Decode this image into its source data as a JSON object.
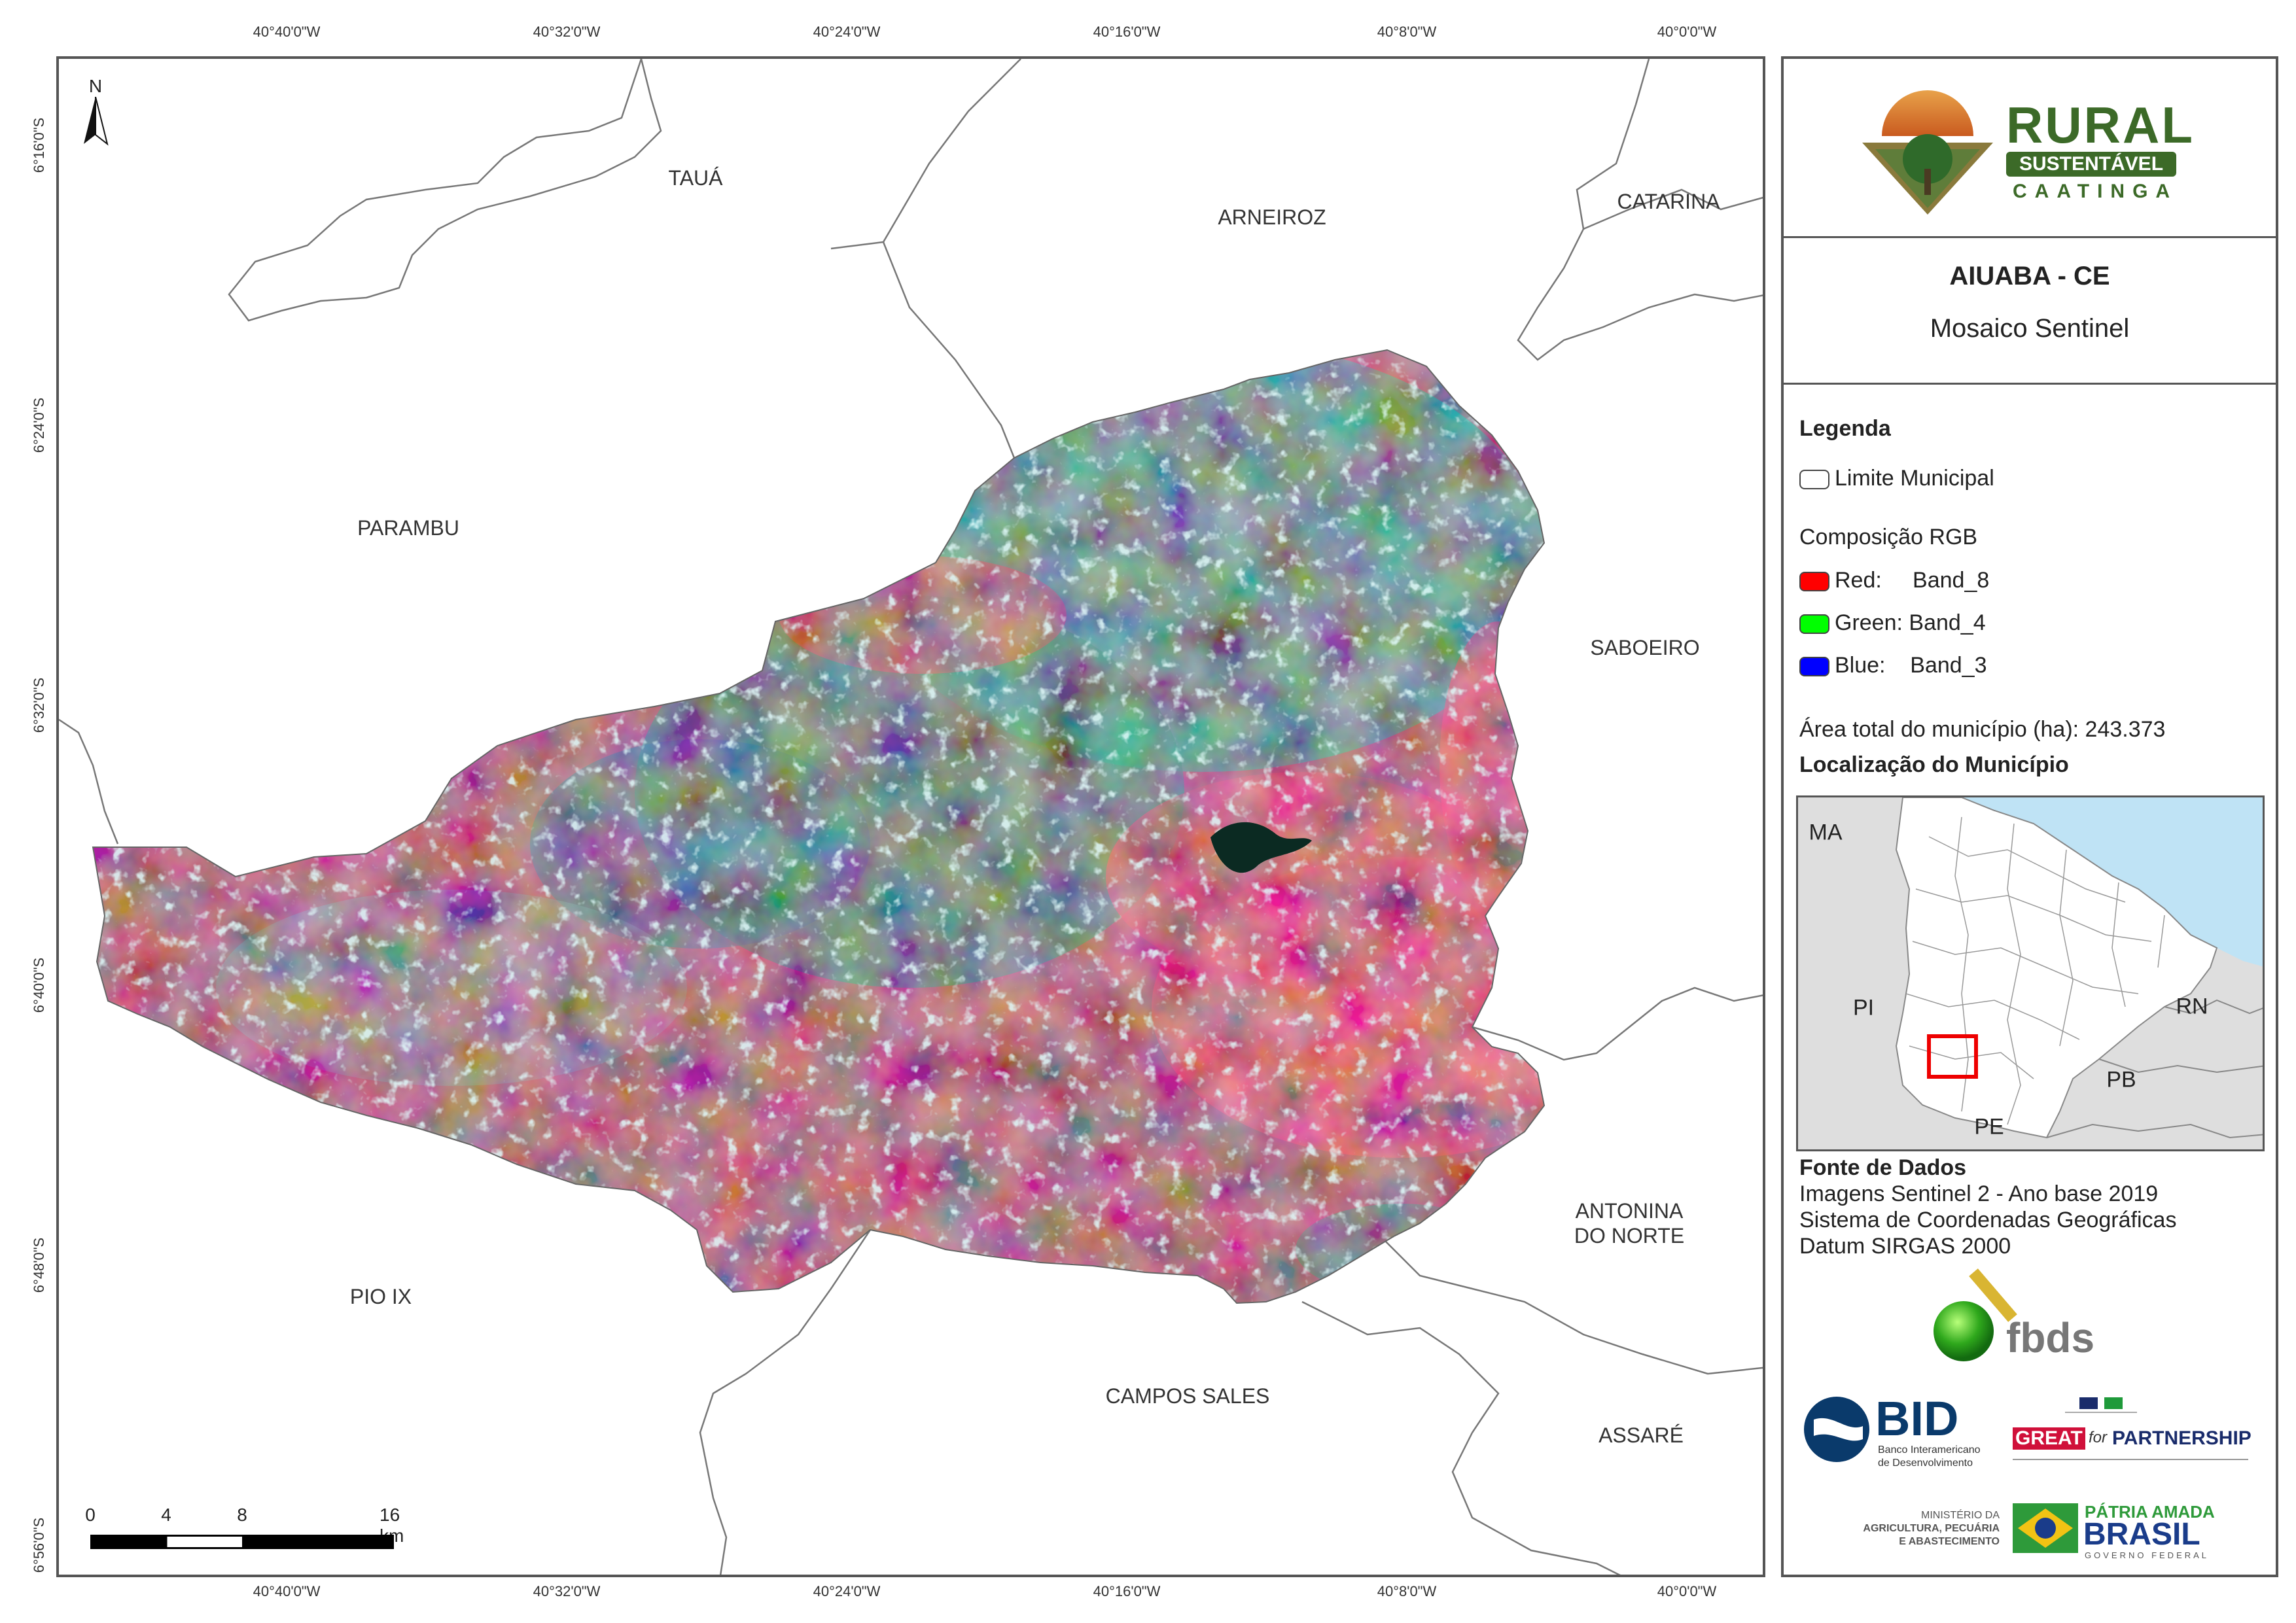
{
  "grid": {
    "top": [
      "40°40'0\"W",
      "40°32'0\"W",
      "40°24'0\"W",
      "40°16'0\"W",
      "40°8'0\"W",
      "40°0'0\"W"
    ],
    "bottom": [
      "40°40'0\"W",
      "40°32'0\"W",
      "40°24'0\"W",
      "40°16'0\"W",
      "40°8'0\"W",
      "40°0'0\"W"
    ],
    "left": [
      "6°16'0\"S",
      "6°24'0\"S",
      "6°32'0\"S",
      "6°40'0\"S",
      "6°48'0\"S",
      "6°56'0\"S"
    ]
  },
  "north_arrow": {
    "label": "N"
  },
  "places": {
    "taua": "TAUÁ",
    "arneiroz": "ARNEIROZ",
    "catarina": "CATARINA",
    "parambu": "PARAMBU",
    "saboeiro": "SABOEIRO",
    "antonina_1": "ANTONINA",
    "antonina_2": "DO NORTE",
    "pio_ix": "PIO IX",
    "campos_sales": "CAMPOS SALES",
    "assare": "ASSARÉ"
  },
  "scale_bar": {
    "ticks": [
      "0",
      "4",
      "8",
      "16 km"
    ]
  },
  "logo_rural": {
    "line1": "RURAL",
    "line2": "SUSTENTÁVEL",
    "line3": "CAATINGA"
  },
  "title": {
    "line1": "AIUABA - CE",
    "line2": "Mosaico Sentinel"
  },
  "legend": {
    "heading": "Legenda",
    "boundary": "Limite Municipal",
    "rgb_heading": "Composição RGB",
    "red": "Red:     Band_8",
    "green": "Green: Band_4",
    "blue": "Blue:    Band_3",
    "colors": {
      "red": "#ff0000",
      "green": "#00ff00",
      "blue": "#0000ff"
    }
  },
  "area_text": "Área total do município (ha): 243.373",
  "location_heading": "Localização do Município",
  "inset": {
    "ma": "MA",
    "pi": "PI",
    "rn": "RN",
    "pb": "PB",
    "pe": "PE"
  },
  "sources": {
    "heading": "Fonte de Dados",
    "line1": "Imagens Sentinel 2 - Ano base 2019",
    "line2": "Sistema de Coordenadas Geográficas",
    "line3": "Datum SIRGAS 2000"
  },
  "logos": {
    "fbds": "fbds",
    "bid": "BID",
    "bid_sub1": "Banco Interamericano",
    "bid_sub2": "de Desenvolvimento",
    "great": "GREAT",
    "great_for": "for",
    "partnership": "PARTNERSHIP",
    "mapa1": "MINISTÉRIO DA",
    "mapa2": "AGRICULTURA, PECUÁRIA",
    "mapa3": "E ABASTECIMENTO",
    "patria": "PÁTRIA AMADA",
    "brasil": "BRASIL",
    "governo": "GOVERNO FEDERAL"
  }
}
